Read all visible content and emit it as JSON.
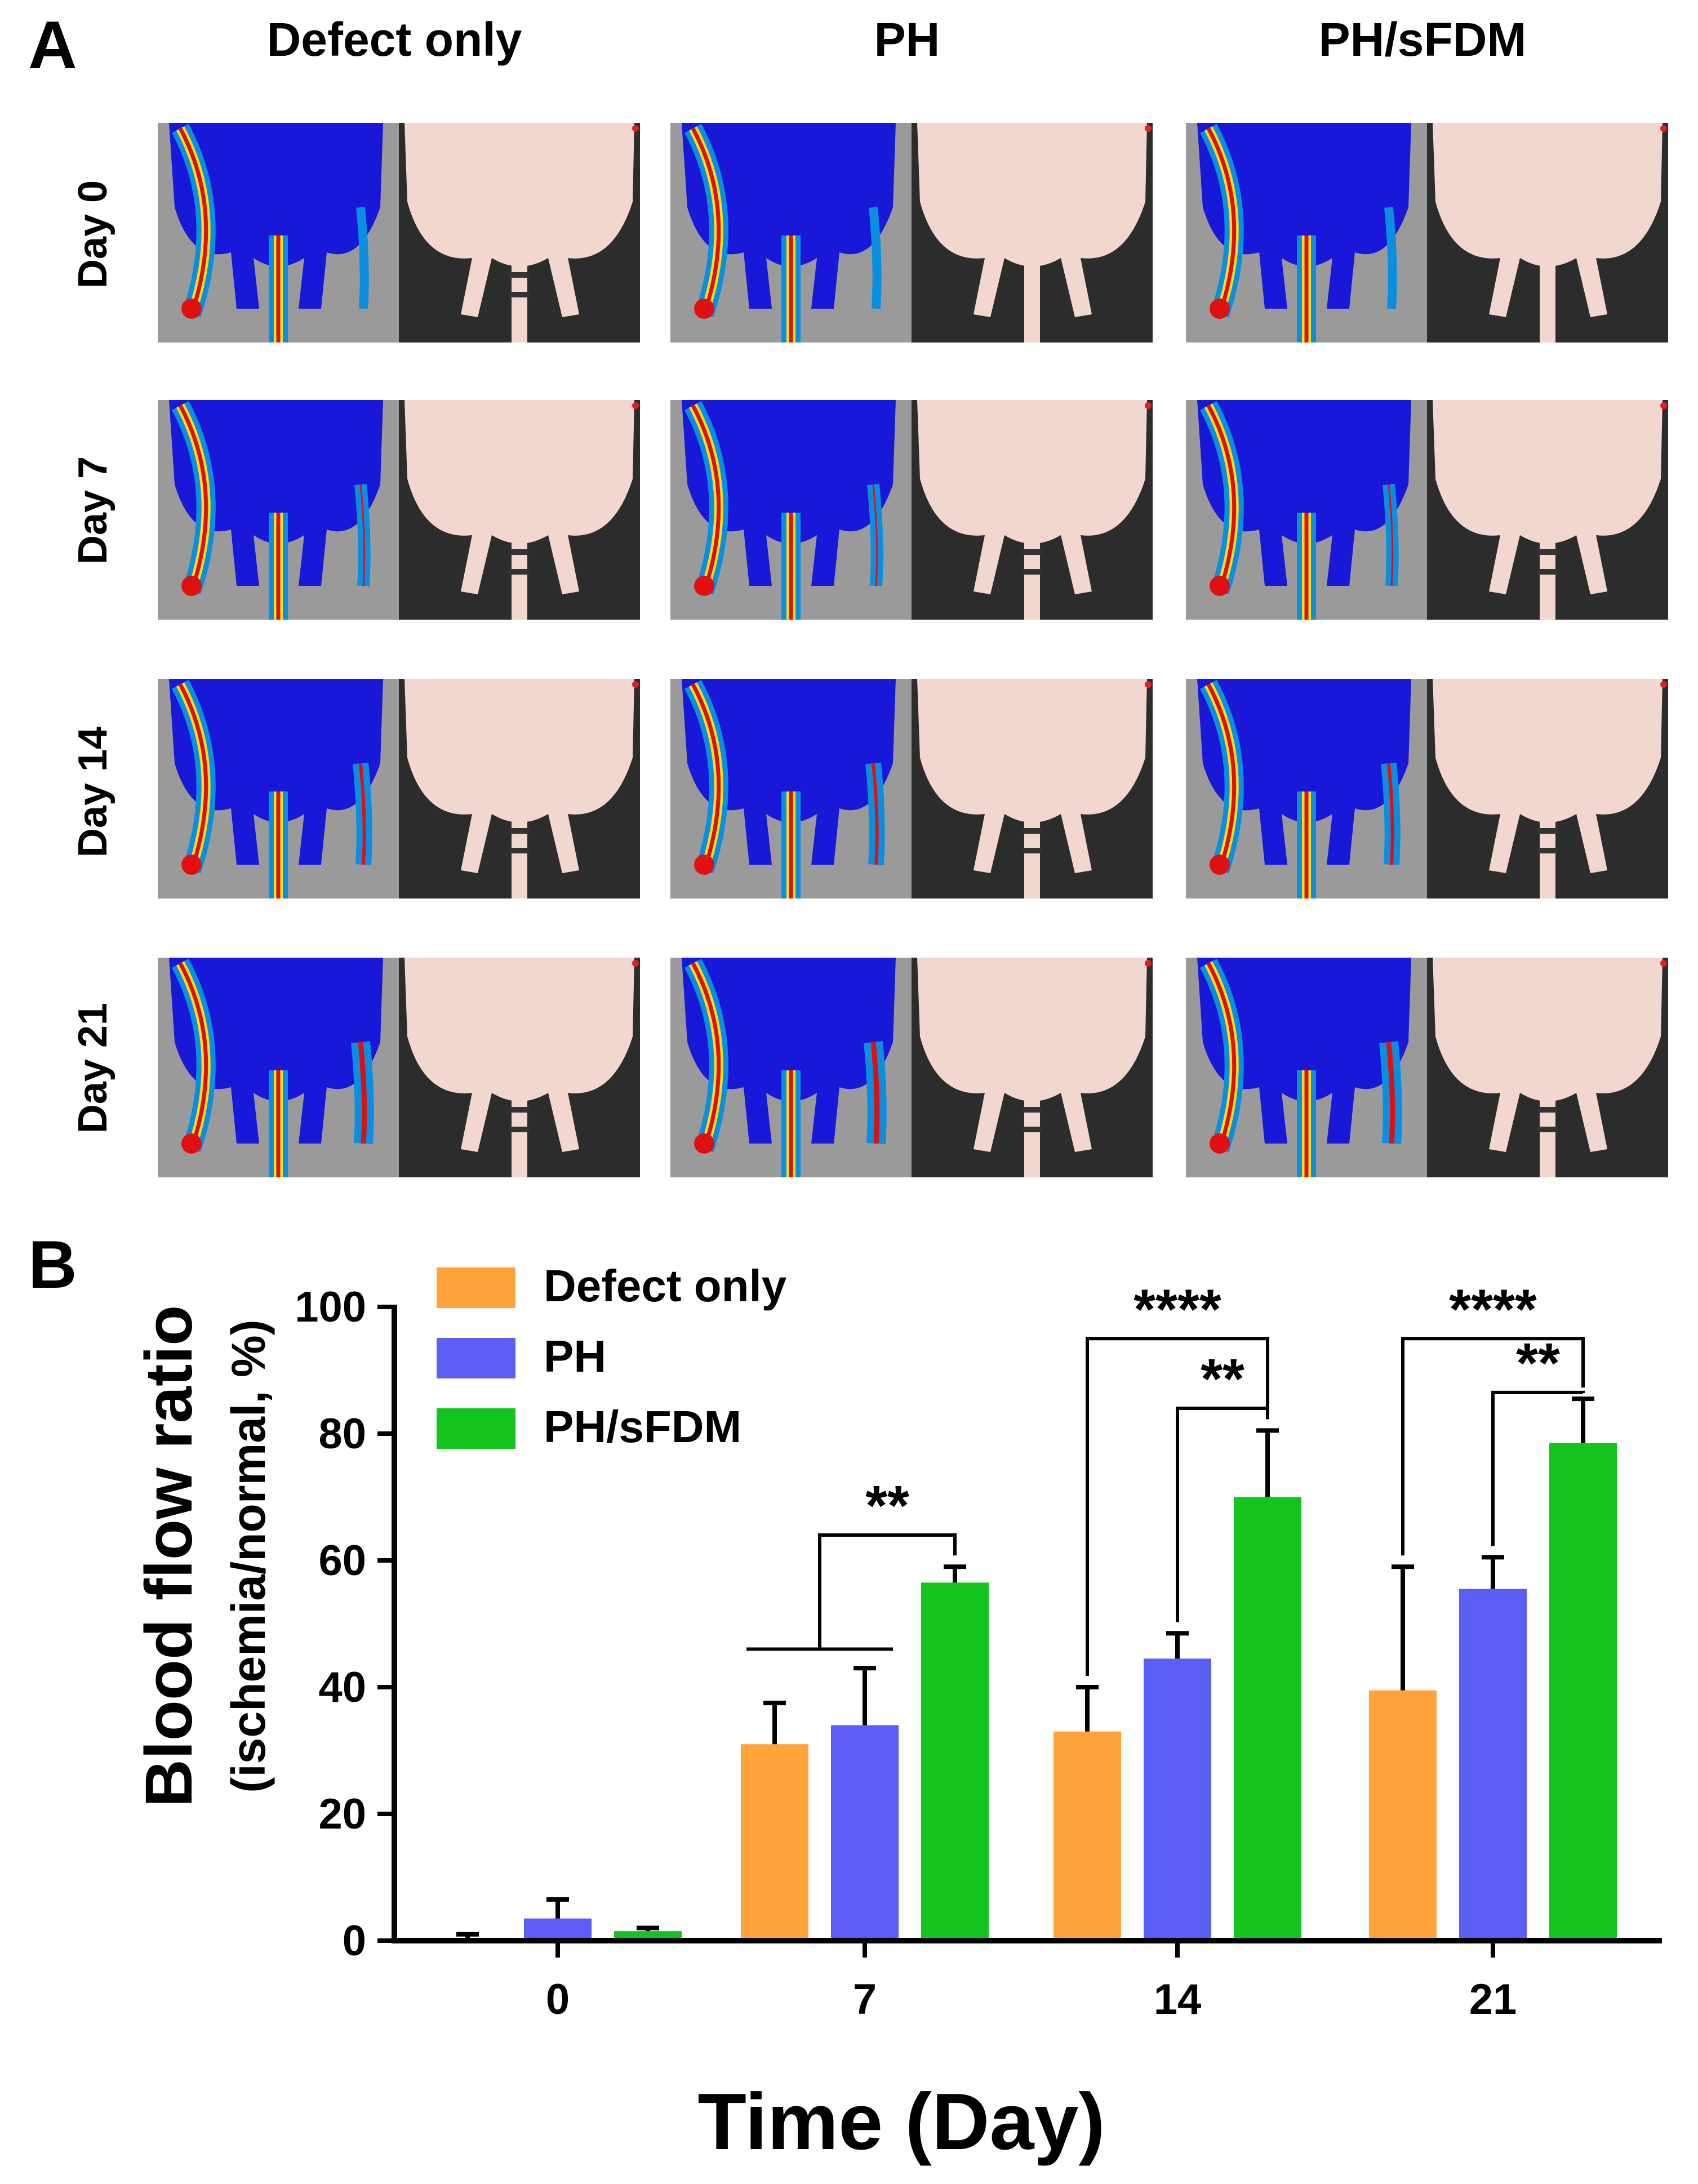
{
  "panel_a": {
    "label": "A",
    "columns": [
      "Defect only",
      "PH",
      "PH/sFDM"
    ],
    "rows": [
      "Day 0",
      "Day 7",
      "Day 14",
      "Day 21"
    ],
    "image_kinds": [
      "laser-doppler-perfusion-image",
      "photograph"
    ]
  },
  "panel_b": {
    "label": "B"
  },
  "colors": {
    "defect_only": "#ffa43a",
    "ph": "#5b5ef5",
    "ph_sfdm": "#14c41e",
    "perfusion_background": "#9a9a9a",
    "perfusion_body": "#1a18d8",
    "photo_background": "#2c2c2c",
    "photo_skin": "#f2d6d0"
  },
  "chart_data": {
    "type": "bar",
    "title": "",
    "xlabel": "Time (Day)",
    "ylabel": "Blood flow ratio",
    "ylabel_sub": "(ischemia/normal, %)",
    "categories": [
      "0",
      "7",
      "14",
      "21"
    ],
    "ylim": [
      0,
      100
    ],
    "yticks": [
      0,
      20,
      40,
      60,
      80,
      100
    ],
    "grid": false,
    "legend_position": "top-left",
    "series": [
      {
        "name": "Defect only",
        "color": "#ffa43a",
        "values": [
          0,
          31,
          33,
          39.5
        ],
        "errors": [
          1,
          6.5,
          7,
          19.5
        ]
      },
      {
        "name": "PH",
        "color": "#5b5ef5",
        "values": [
          3.5,
          34,
          44.5,
          55.5
        ],
        "errors": [
          3,
          9,
          4,
          5
        ]
      },
      {
        "name": "PH/sFDM",
        "color": "#14c41e",
        "values": [
          1.5,
          56.5,
          70,
          78.5
        ],
        "errors": [
          0.5,
          2.5,
          10.5,
          7
        ]
      }
    ],
    "significance": [
      {
        "label": "**",
        "category": "7",
        "from": "Defect only+PH",
        "to": "PH/sFDM"
      },
      {
        "label": "****",
        "category": "14",
        "from": "Defect only",
        "to": "PH/sFDM"
      },
      {
        "label": "**",
        "category": "14",
        "from": "PH",
        "to": "PH/sFDM"
      },
      {
        "label": "****",
        "category": "21",
        "from": "Defect only",
        "to": "PH/sFDM"
      },
      {
        "label": "**",
        "category": "21",
        "from": "PH",
        "to": "PH/sFDM"
      }
    ]
  }
}
